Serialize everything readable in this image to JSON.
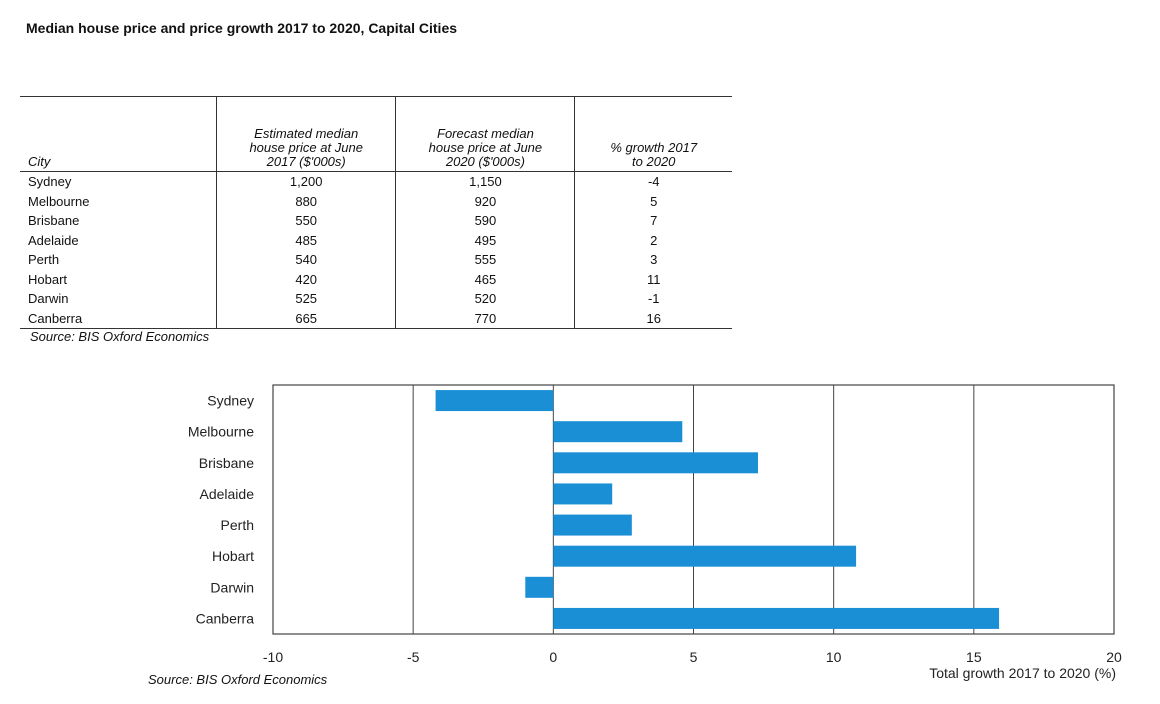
{
  "title": "Median house price and price growth 2017 to 2020, Capital Cities",
  "table": {
    "headers": {
      "city": "City",
      "price_2017": [
        "Estimated median",
        "house price at June",
        "2017 ($'000s)"
      ],
      "price_2020": [
        "Forecast median",
        "house price at June",
        "2020 ($'000s)"
      ],
      "growth": [
        "% growth 2017",
        "to 2020"
      ]
    },
    "rows": [
      {
        "city": "Sydney",
        "price_2017": "1,200",
        "price_2020": "1,150",
        "growth": "-4"
      },
      {
        "city": "Melbourne",
        "price_2017": "880",
        "price_2020": "920",
        "growth": "5"
      },
      {
        "city": "Brisbane",
        "price_2017": "550",
        "price_2020": "590",
        "growth": "7"
      },
      {
        "city": "Adelaide",
        "price_2017": "485",
        "price_2020": "495",
        "growth": "2"
      },
      {
        "city": "Perth",
        "price_2017": "540",
        "price_2020": "555",
        "growth": "3"
      },
      {
        "city": "Hobart",
        "price_2017": "420",
        "price_2020": "465",
        "growth": "11"
      },
      {
        "city": "Darwin",
        "price_2017": "525",
        "price_2020": "520",
        "growth": "-1"
      },
      {
        "city": "Canberra",
        "price_2017": "665",
        "price_2020": "770",
        "growth": "16"
      }
    ],
    "source": "Source: BIS Oxford Economics"
  },
  "chart_data": {
    "type": "bar",
    "orientation": "horizontal",
    "categories": [
      "Sydney",
      "Melbourne",
      "Brisbane",
      "Adelaide",
      "Perth",
      "Hobart",
      "Darwin",
      "Canberra"
    ],
    "values": [
      -4.2,
      4.6,
      7.3,
      2.1,
      2.8,
      10.8,
      -1.0,
      15.9
    ],
    "xlim": [
      -10,
      20
    ],
    "xticks": [
      -10,
      -5,
      0,
      5,
      10,
      15,
      20
    ],
    "xlabel": "Total growth 2017 to 2020 (%)",
    "grid": "vertical",
    "bar_color": "#1a8fd6",
    "source": "Source: BIS Oxford Economics"
  }
}
